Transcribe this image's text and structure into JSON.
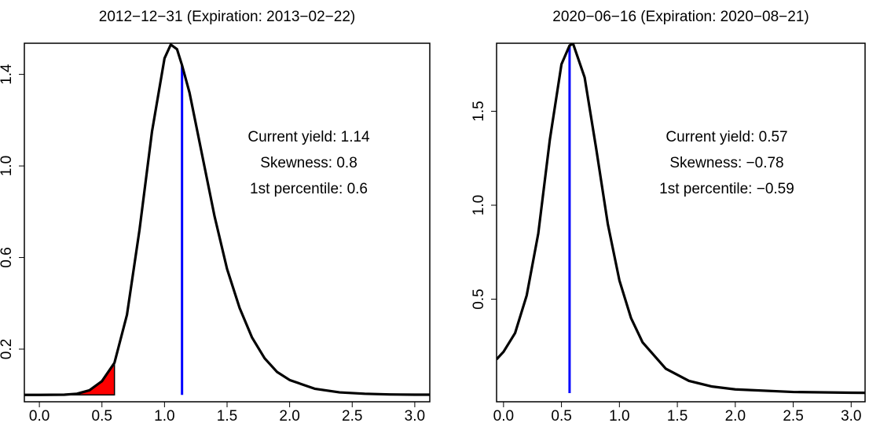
{
  "chart_data": [
    {
      "type": "line",
      "title": "2012−12−31 (Expiration: 2013−02−22)",
      "annotations": [
        "Current yield: 1.14",
        "Skewness: 0.8",
        "1st percentile: 0.6"
      ],
      "x": [
        -0.12,
        0,
        0.2,
        0.3,
        0.4,
        0.5,
        0.6,
        0.7,
        0.8,
        0.9,
        1.0,
        1.05,
        1.1,
        1.14,
        1.2,
        1.3,
        1.4,
        1.5,
        1.6,
        1.7,
        1.8,
        1.9,
        2.0,
        2.2,
        2.4,
        2.6,
        2.8,
        3.0,
        3.12
      ],
      "values": [
        0,
        0,
        0.001,
        0.005,
        0.02,
        0.06,
        0.14,
        0.35,
        0.72,
        1.15,
        1.47,
        1.53,
        1.51,
        1.44,
        1.32,
        1.05,
        0.78,
        0.55,
        0.38,
        0.25,
        0.16,
        0.1,
        0.065,
        0.027,
        0.011,
        0.005,
        0.002,
        0.001,
        0.001
      ],
      "color": "#000000",
      "vline": {
        "x": 1.14,
        "color": "#0000ff"
      },
      "shade": {
        "to": 0.6,
        "color": "#ff0000"
      },
      "xlim": [
        -0.12,
        3.12
      ],
      "ylim": [
        -0.03,
        1.536
      ],
      "xticks": [
        {
          "value": 0,
          "label": "0.0"
        },
        0.5,
        {
          "value": 1,
          "label": "1.0"
        },
        1.5,
        {
          "value": 2,
          "label": "2.0"
        },
        2.5,
        {
          "value": 3,
          "label": "3.0"
        }
      ],
      "yticks": [
        0.2,
        0.6,
        {
          "value": 1,
          "label": "1.0"
        },
        1.4
      ]
    },
    {
      "type": "line",
      "title": "2020−06−16 (Expiration: 2020−08−21)",
      "annotations": [
        "Current yield: 0.57",
        "Skewness: −0.78",
        "1st percentile: −0.59"
      ],
      "x": [
        -0.06,
        0,
        0.1,
        0.2,
        0.3,
        0.4,
        0.5,
        0.57,
        0.6,
        0.7,
        0.8,
        0.9,
        1.0,
        1.1,
        1.2,
        1.4,
        1.6,
        1.8,
        2.0,
        2.5,
        3.0,
        3.12
      ],
      "values": [
        0.18,
        0.22,
        0.32,
        0.52,
        0.85,
        1.35,
        1.75,
        1.85,
        1.86,
        1.68,
        1.3,
        0.9,
        0.6,
        0.4,
        0.27,
        0.13,
        0.065,
        0.035,
        0.02,
        0.006,
        0.002,
        0.0015
      ],
      "color": "#000000",
      "vline": {
        "x": 0.57,
        "color": "#0000ff"
      },
      "xlim": [
        -0.06,
        3.12
      ],
      "ylim": [
        -0.046,
        1.862
      ],
      "xticks": [
        {
          "value": 0,
          "label": "0.0"
        },
        0.5,
        {
          "value": 1,
          "label": "1.0"
        },
        1.5,
        {
          "value": 2,
          "label": "2.0"
        },
        2.5,
        {
          "value": 3,
          "label": "3.0"
        }
      ],
      "yticks": [
        0.5,
        {
          "value": 1,
          "label": "1.0"
        },
        1.5
      ]
    }
  ]
}
